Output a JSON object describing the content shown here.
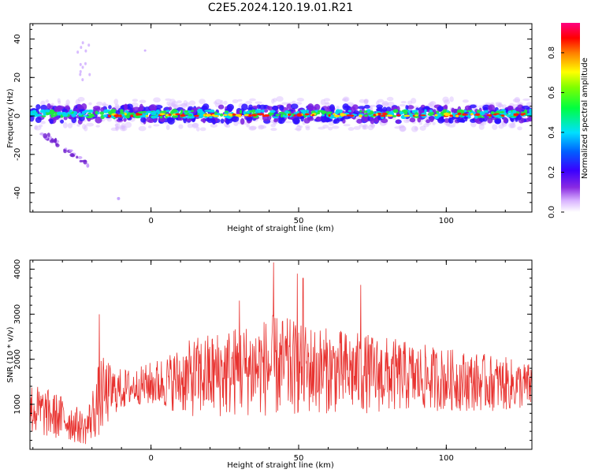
{
  "title": "C2E5.2024.120.19.01.R21",
  "colors": {
    "snr_line": "#e8322f",
    "axis": "#000000",
    "background": "#ffffff"
  },
  "chart_data": [
    {
      "type": "heatmap",
      "xlabel": "Height of straight line (km)",
      "ylabel": "Frequency (Hz)",
      "xlim": [
        -41,
        129
      ],
      "ylim": [
        -50,
        48
      ],
      "x_ticks": [
        0,
        50,
        100
      ],
      "y_ticks": [
        -40,
        -20,
        0,
        20,
        40
      ],
      "colorbar": {
        "label": "Normalized spectral amplitude",
        "range": [
          0.0,
          0.95
        ],
        "ticks": [
          0.0,
          0.2,
          0.4,
          0.6,
          0.8
        ],
        "colormap": "rainbow (white-violet-blue-cyan-green-yellow-red-magenta)"
      },
      "features": [
        {
          "description": "main echo band",
          "x_range": [
            -41,
            129
          ],
          "frequency_hz": 1,
          "spread_hz": [
            -3,
            5
          ]
        },
        {
          "description": "descending streak",
          "x_range": [
            -38,
            -21
          ],
          "frequency_hz": [
            -8,
            -25
          ]
        },
        {
          "description": "upper scattered points",
          "x_range": [
            -25,
            -20
          ],
          "frequency_hz": [
            18,
            42
          ]
        }
      ]
    },
    {
      "type": "line",
      "xlabel": "Height of straight line (km)",
      "ylabel": "SNR (10 * v/v)",
      "xlim": [
        -41,
        129
      ],
      "ylim": [
        0,
        4200
      ],
      "x_ticks": [
        0,
        50,
        100
      ],
      "y_ticks": [
        1000,
        2000,
        3000,
        4000
      ],
      "series": [
        {
          "envelope_x": [
            -41,
            -30,
            -22,
            -17,
            -12,
            -5,
            5,
            15,
            25,
            35,
            42,
            50,
            60,
            70,
            80,
            90,
            100,
            110,
            120,
            129
          ],
          "envelope_mean": [
            900,
            700,
            450,
            1200,
            1300,
            1400,
            1500,
            1600,
            1700,
            1800,
            1850,
            1800,
            1750,
            1700,
            1650,
            1600,
            1550,
            1500,
            1450,
            1400
          ],
          "envelope_amp": [
            600,
            500,
            350,
            900,
            500,
            400,
            600,
            900,
            1000,
            1050,
            1150,
            1050,
            950,
            900,
            850,
            750,
            700,
            650,
            600,
            500
          ],
          "peaks": [
            {
              "x": -17.5,
              "y": 3000
            },
            {
              "x": 30,
              "y": 3300
            },
            {
              "x": 41.5,
              "y": 4150
            },
            {
              "x": 49.5,
              "y": 3900
            },
            {
              "x": 51.5,
              "y": 3800
            },
            {
              "x": 71,
              "y": 3650
            }
          ]
        }
      ]
    }
  ]
}
